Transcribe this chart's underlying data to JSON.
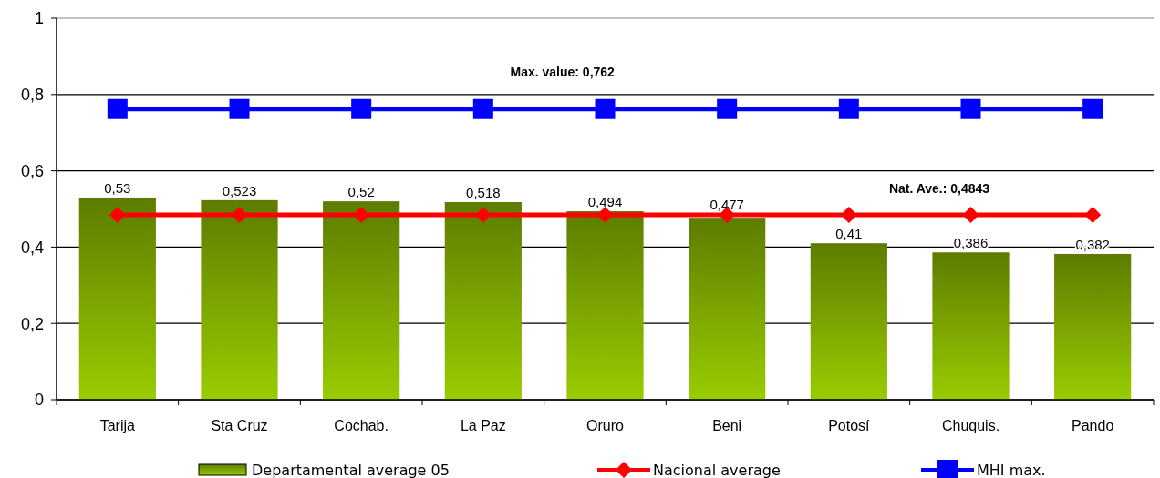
{
  "chart_data": {
    "type": "bar",
    "categories": [
      "Tarija",
      "Sta Cruz",
      "Cochab.",
      "La Paz",
      "Oruro",
      "Beni",
      "Potosí",
      "Chuquis.",
      "Pando"
    ],
    "series": [
      {
        "name": "Departamental average 05",
        "color": "#99cc00",
        "values": [
          0.53,
          0.523,
          0.52,
          0.518,
          0.494,
          0.477,
          0.41,
          0.386,
          0.382
        ],
        "value_labels": [
          "0,53",
          "0,523",
          "0,52",
          "0,518",
          "0,494",
          "0,477",
          "0,41",
          "0,386",
          "0,382"
        ]
      },
      {
        "name": "Nacional average",
        "type": "line",
        "color": "#ff0000",
        "marker": "diamond",
        "values": [
          0.4843,
          0.4843,
          0.4843,
          0.4843,
          0.4843,
          0.4843,
          0.4843,
          0.4843,
          0.4843
        ]
      },
      {
        "name": "MHI max.",
        "type": "line",
        "color": "#0000ff",
        "marker": "square",
        "values": [
          0.762,
          0.762,
          0.762,
          0.762,
          0.762,
          0.762,
          0.762,
          0.762,
          0.762
        ]
      }
    ],
    "ylim": [
      0,
      1
    ],
    "yticks": [
      {
        "value": 0,
        "label": "0"
      },
      {
        "value": 0.2,
        "label": "0,2"
      },
      {
        "value": 0.4,
        "label": "0,4"
      },
      {
        "value": 0.6,
        "label": "0,6"
      },
      {
        "value": 0.8,
        "label": "0,8"
      },
      {
        "value": 1,
        "label": "1"
      }
    ],
    "grid": "y",
    "legend": "bottom",
    "annotations": [
      {
        "text": "Max. value: 0,762",
        "x": "Oruro",
        "y": 0.762
      },
      "Nat. Ave.: 0,4843"
    ]
  }
}
